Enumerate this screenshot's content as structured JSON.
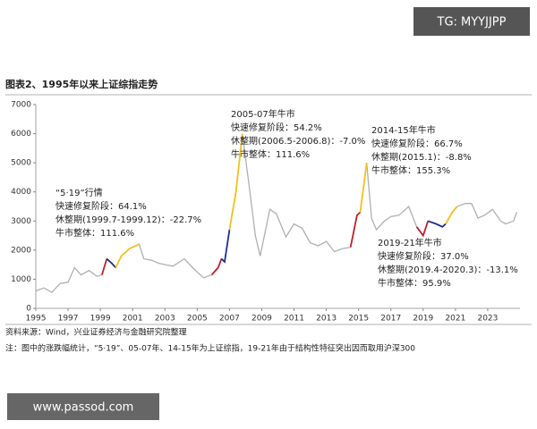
{
  "chart_data": {
    "type": "line",
    "title": "图表2、1995年以来上证综指走势",
    "x": [
      1995.0,
      1995.5,
      1996.0,
      1996.5,
      1997.0,
      1997.4,
      1997.8,
      1998.3,
      1998.8,
      1999.1,
      1999.4,
      1999.7,
      1999.95,
      2000.3,
      2000.8,
      2001.4,
      2001.7,
      2002.2,
      2002.6,
      2003.0,
      2003.5,
      2004.2,
      2004.8,
      2005.4,
      2005.9,
      2006.3,
      2006.5,
      2006.7,
      2007.0,
      2007.4,
      2007.8,
      2008.2,
      2008.6,
      2008.9,
      2009.5,
      2009.9,
      2010.5,
      2011.0,
      2011.5,
      2012.0,
      2012.5,
      2013.0,
      2013.5,
      2014.0,
      2014.5,
      2014.9,
      2015.1,
      2015.5,
      2015.8,
      2016.1,
      2016.6,
      2017.0,
      2017.5,
      2017.9,
      2018.1,
      2018.6,
      2019.0,
      2019.3,
      2019.8,
      2020.2,
      2020.4,
      2020.8,
      2021.1,
      2021.6,
      2022.0,
      2022.4,
      2022.8,
      2023.3,
      2023.8,
      2024.1,
      2024.6,
      2024.8
    ],
    "series": [
      {
        "color": "#b0b0b0",
        "values": [
          600,
          700,
          550,
          850,
          900,
          1400,
          1150,
          1300,
          1100,
          1150,
          1700,
          1550,
          1400,
          1800,
          2050,
          2200,
          1700,
          1650,
          1550,
          1500,
          1450,
          1700,
          1350,
          1050,
          1150,
          1400,
          1700,
          1600,
          2700,
          4000,
          6000,
          4300,
          2500,
          1800,
          3400,
          3250,
          2450,
          2900,
          2750,
          2250,
          2150,
          2300,
          1950,
          2050,
          2100,
          3200,
          3300,
          5000,
          3100,
          2700,
          3000,
          3150,
          3200,
          3400,
          3500,
          2800,
          2500,
          3000,
          2900,
          2800,
          2900,
          3300,
          3500,
          3600,
          3600,
          3100,
          3200,
          3400,
          3000,
          2900,
          3000,
          3300
        ]
      },
      {
        "color": "#c0202a",
        "values": [
          null,
          null,
          null,
          null,
          null,
          null,
          null,
          null,
          null,
          1150,
          1700,
          null,
          null,
          null,
          null,
          null,
          null,
          null,
          null,
          null,
          null,
          null,
          null,
          null,
          1150,
          1400,
          1700,
          null,
          null,
          null,
          null,
          null,
          null,
          null,
          null,
          null,
          null,
          null,
          null,
          null,
          null,
          null,
          null,
          null,
          2100,
          3200,
          3300,
          null,
          null,
          null,
          null,
          null,
          null,
          null,
          null,
          2800,
          2500,
          3000,
          null,
          null,
          null,
          null,
          null,
          null,
          null,
          null,
          null,
          null,
          null,
          null,
          null,
          null
        ]
      },
      {
        "color": "#1f2f8f",
        "values": [
          null,
          null,
          null,
          null,
          null,
          null,
          null,
          null,
          null,
          null,
          1700,
          1550,
          1400,
          null,
          null,
          null,
          null,
          null,
          null,
          null,
          null,
          null,
          null,
          null,
          null,
          null,
          1700,
          1600,
          2700,
          null,
          null,
          null,
          null,
          null,
          null,
          null,
          null,
          null,
          null,
          null,
          null,
          null,
          null,
          null,
          null,
          null,
          null,
          null,
          null,
          null,
          null,
          null,
          null,
          null,
          null,
          null,
          null,
          3000,
          2900,
          2800,
          2900,
          null,
          null,
          null,
          null,
          null,
          null,
          null,
          null,
          null,
          null,
          null
        ]
      },
      {
        "color": "#f2c21b",
        "values": [
          null,
          null,
          null,
          null,
          null,
          null,
          null,
          null,
          null,
          null,
          null,
          null,
          1400,
          1800,
          2050,
          2200,
          null,
          null,
          null,
          null,
          null,
          null,
          null,
          null,
          null,
          null,
          null,
          null,
          2700,
          4000,
          6000,
          null,
          null,
          null,
          null,
          null,
          null,
          null,
          null,
          null,
          null,
          null,
          null,
          null,
          null,
          null,
          3300,
          5000,
          null,
          null,
          null,
          null,
          null,
          null,
          null,
          null,
          null,
          null,
          null,
          null,
          2900,
          3300,
          3500,
          null,
          null,
          null,
          null,
          null,
          null,
          null,
          null,
          null
        ]
      }
    ],
    "xlim": [
      1995,
      2025
    ],
    "xticks": [
      1995,
      1997,
      1999,
      2001,
      2003,
      2005,
      2007,
      2009,
      2011,
      2013,
      2015,
      2017,
      2019,
      2021,
      2023
    ],
    "ylim": [
      0,
      7000
    ],
    "yticks": [
      0,
      1000,
      2000,
      3000,
      4000,
      5000,
      6000,
      7000
    ],
    "annotations": [
      [
        "“5·19”行情",
        "快速修复阶段：64.1%",
        "休整期(1999.7-1999.12)：-22.7%",
        "牛市整体：111.6%"
      ],
      [
        "2005-07年牛市",
        "快速修复阶段：54.2%",
        "休整期(2006.5-2006.8)：-7.0%",
        "牛市整体：111.6%"
      ],
      [
        "2014-15年牛市",
        "快速修复阶段：66.7%",
        "休整期(2015.1)：-8.8%",
        "牛市整体：155.3%"
      ],
      [
        "2019-21年牛市",
        "快速修复阶段：37.0%",
        "休整期(2019.4-2020.3)：-13.1%",
        "牛市整体：95.9%"
      ]
    ],
    "source": "资料来源：Wind，兴业证券经济与金融研究院整理",
    "note": "注：图中的涨跌幅统计，“5·19”、05-07年、14-15年为上证综指，19-21年由于结构性特征突出因而取用沪深300",
    "watermark_top": "TG: MYYJJPP",
    "watermark_bottom": "www.passod.com"
  }
}
